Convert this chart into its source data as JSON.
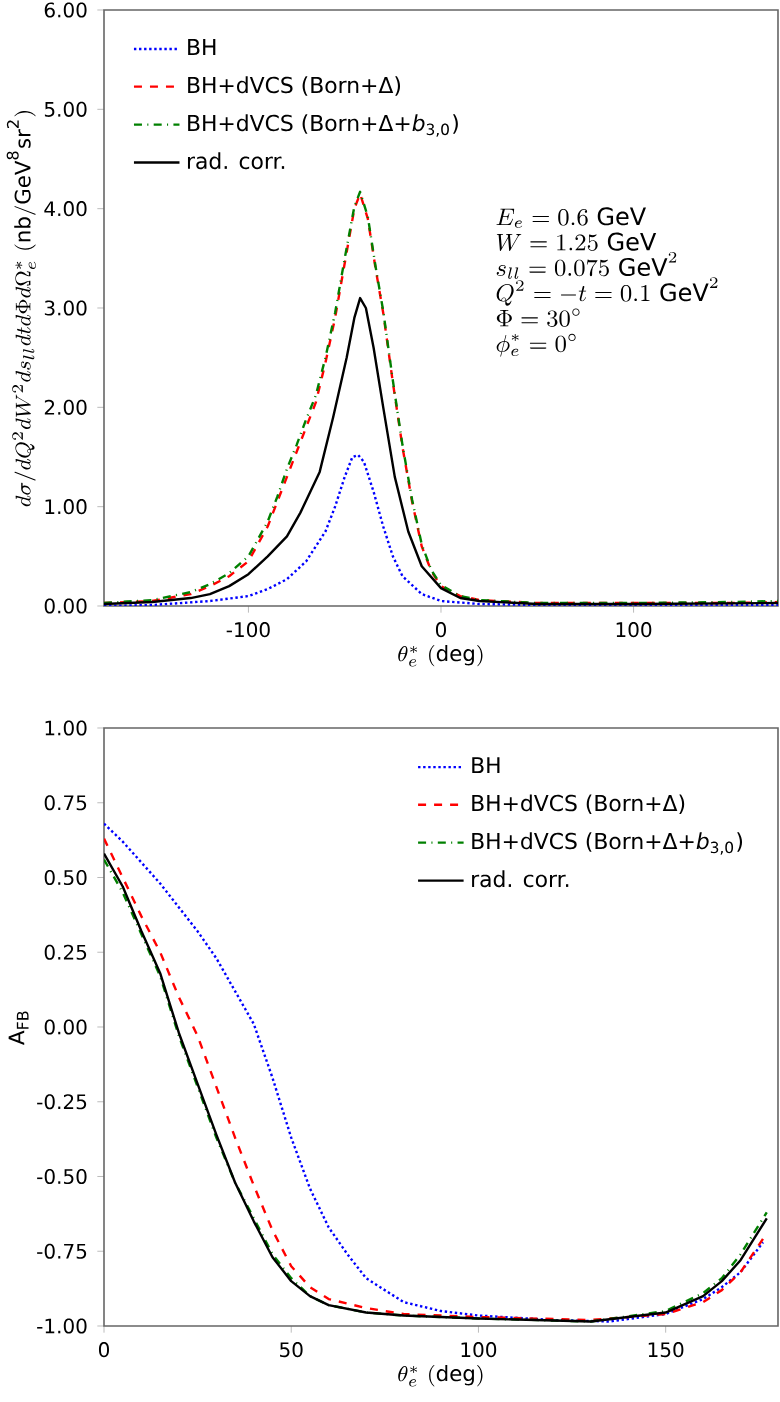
{
  "chart_data": [
    {
      "type": "line",
      "xlabel": "\\theta_e^*\\ (\\mathrm{deg})",
      "ylabel": "d\\sigma/dQ^2dW^2ds_{ll}dtd\\Phi d\\Omega_e^*\\ (\\mathrm{nb/GeV^8sr^2})",
      "xlim": [
        -175,
        175
      ],
      "ylim": [
        0,
        6
      ],
      "xticks": [
        -100,
        0,
        100
      ],
      "yticks": [
        {
          "value": 0,
          "label": "0.00"
        },
        {
          "value": 1,
          "label": "1.00"
        },
        {
          "value": 2,
          "label": "2.00"
        },
        {
          "value": 3,
          "label": "3.00"
        },
        {
          "value": 4,
          "label": "4.00"
        },
        {
          "value": 5,
          "label": "5.00"
        },
        {
          "value": 6,
          "label": "6.00"
        }
      ],
      "legend": "top left",
      "grid": false,
      "annotations": [
        "E_e = 0.6\\ \\mathrm{GeV}",
        "W = 1.25\\ \\mathrm{GeV}",
        "s_{ll} = 0.075\\ \\mathrm{GeV}^2",
        "Q^2 = -t = 0.1\\ \\mathrm{GeV}^2",
        "\\Phi = 30^\\circ",
        "\\phi_e^* = 0^\\circ"
      ],
      "series": [
        {
          "name": "BH",
          "color": "#0000ff",
          "line_style": "dotted",
          "x": [
            -175,
            -150,
            -120,
            -100,
            -90,
            -80,
            -70,
            -60,
            -55,
            -50,
            -46,
            -43,
            -40,
            -35,
            -30,
            -25,
            -20,
            -10,
            0,
            20,
            50,
            100,
            175
          ],
          "values": [
            0.0,
            0.01,
            0.05,
            0.1,
            0.17,
            0.27,
            0.45,
            0.75,
            1.0,
            1.3,
            1.5,
            1.52,
            1.45,
            1.15,
            0.8,
            0.5,
            0.3,
            0.12,
            0.05,
            0.02,
            0.01,
            0.01,
            0.01
          ]
        },
        {
          "name": "BH+dVCS (Born+Δ)",
          "color": "#ff0000",
          "line_style": "dashed",
          "x": [
            -175,
            -150,
            -130,
            -120,
            -110,
            -100,
            -90,
            -85,
            -80,
            -75,
            -70,
            -65,
            -60,
            -55,
            -50,
            -45,
            -42,
            -38,
            -34,
            -30,
            -25,
            -20,
            -15,
            -10,
            -5,
            0,
            10,
            20,
            50,
            100,
            150,
            175
          ],
          "values": [
            0.03,
            0.05,
            0.12,
            0.2,
            0.3,
            0.45,
            0.8,
            1.05,
            1.3,
            1.55,
            1.8,
            2.05,
            2.45,
            2.9,
            3.45,
            4.0,
            4.15,
            3.9,
            3.4,
            2.95,
            2.25,
            1.6,
            1.05,
            0.6,
            0.35,
            0.2,
            0.1,
            0.06,
            0.03,
            0.03,
            0.03,
            0.04
          ]
        },
        {
          "name": "BH+dVCS (Born+Δ+*b*$_{3,0}$)",
          "color": "#008000",
          "line_style": "dashdot",
          "x": [
            -175,
            -150,
            -130,
            -120,
            -110,
            -100,
            -90,
            -85,
            -80,
            -75,
            -70,
            -65,
            -60,
            -55,
            -50,
            -45,
            -42,
            -38,
            -34,
            -30,
            -25,
            -20,
            -15,
            -10,
            -5,
            0,
            10,
            20,
            50,
            100,
            150,
            175
          ],
          "values": [
            0.03,
            0.06,
            0.14,
            0.22,
            0.33,
            0.5,
            0.85,
            1.1,
            1.38,
            1.62,
            1.88,
            2.12,
            2.5,
            2.95,
            3.5,
            4.02,
            4.17,
            3.92,
            3.42,
            2.97,
            2.27,
            1.62,
            1.07,
            0.62,
            0.36,
            0.21,
            0.1,
            0.06,
            0.03,
            0.03,
            0.04,
            0.05
          ]
        },
        {
          "name": "rad. corr.",
          "color": "#000000",
          "line_style": "solid",
          "x": [
            -175,
            -150,
            -130,
            -120,
            -110,
            -100,
            -90,
            -80,
            -73,
            -63,
            -56,
            -49,
            -45,
            -42,
            -39,
            -35,
            -30,
            -24,
            -17,
            -10,
            0,
            10,
            20,
            50,
            100,
            175
          ],
          "values": [
            0.02,
            0.04,
            0.08,
            0.12,
            0.2,
            0.32,
            0.5,
            0.7,
            0.94,
            1.35,
            1.9,
            2.5,
            2.9,
            3.1,
            3.0,
            2.6,
            2.0,
            1.3,
            0.75,
            0.4,
            0.18,
            0.08,
            0.05,
            0.02,
            0.02,
            0.03
          ]
        }
      ]
    },
    {
      "type": "line",
      "xlabel": "\\theta_e^*\\ (\\mathrm{deg})",
      "ylabel": "A$_{FB}$",
      "xlim": [
        0,
        180
      ],
      "ylim": [
        -1,
        1
      ],
      "xticks": [
        0,
        50,
        100,
        150
      ],
      "yticks": [
        {
          "value": -1,
          "label": "-1.00"
        },
        {
          "value": -0.75,
          "label": "-0.75"
        },
        {
          "value": -0.5,
          "label": "-0.50"
        },
        {
          "value": -0.25,
          "label": "-0.25"
        },
        {
          "value": 0,
          "label": "0.00"
        },
        {
          "value": 0.25,
          "label": "0.25"
        },
        {
          "value": 0.5,
          "label": "0.50"
        },
        {
          "value": 0.75,
          "label": "0.75"
        },
        {
          "value": 1,
          "label": "1.00"
        }
      ],
      "legend": "top right",
      "grid": false,
      "series": [
        {
          "name": "BH",
          "color": "#0000ff",
          "line_style": "dotted",
          "x": [
            0,
            5,
            10,
            15,
            20,
            25,
            30,
            35,
            40,
            45,
            50,
            55,
            60,
            65,
            70,
            80,
            90,
            100,
            120,
            135,
            150,
            160,
            165,
            170,
            176
          ],
          "values": [
            0.68,
            0.62,
            0.55,
            0.48,
            0.4,
            0.32,
            0.23,
            0.12,
            0.01,
            -0.17,
            -0.37,
            -0.54,
            -0.67,
            -0.76,
            -0.84,
            -0.92,
            -0.95,
            -0.965,
            -0.98,
            -0.985,
            -0.96,
            -0.91,
            -0.87,
            -0.82,
            -0.72
          ]
        },
        {
          "name": "BH+dVCS (Born+Δ)",
          "color": "#ff0000",
          "line_style": "dashed",
          "x": [
            0,
            5,
            10,
            15,
            20,
            25,
            30,
            35,
            40,
            45,
            50,
            55,
            60,
            70,
            80,
            100,
            130,
            150,
            160,
            165,
            170,
            177
          ],
          "values": [
            0.63,
            0.5,
            0.37,
            0.25,
            0.1,
            -0.03,
            -0.2,
            -0.37,
            -0.53,
            -0.68,
            -0.8,
            -0.87,
            -0.91,
            -0.94,
            -0.96,
            -0.97,
            -0.98,
            -0.96,
            -0.92,
            -0.88,
            -0.82,
            -0.69
          ]
        },
        {
          "name": "BH+dVCS (Born+Δ+*b*$_{3,0}$)",
          "color": "#008000",
          "line_style": "dashdot",
          "x": [
            0,
            5,
            10,
            15,
            20,
            25,
            30,
            35,
            40,
            45,
            50,
            55,
            60,
            70,
            80,
            100,
            130,
            150,
            160,
            165,
            170,
            177
          ],
          "values": [
            0.56,
            0.45,
            0.31,
            0.17,
            -0.03,
            -0.2,
            -0.37,
            -0.52,
            -0.64,
            -0.76,
            -0.84,
            -0.9,
            -0.93,
            -0.955,
            -0.965,
            -0.975,
            -0.985,
            -0.95,
            -0.89,
            -0.84,
            -0.76,
            -0.62
          ]
        },
        {
          "name": "rad. corr.",
          "color": "#000000",
          "line_style": "solid",
          "x": [
            0,
            5,
            10,
            15,
            20,
            25,
            30,
            35,
            40,
            45,
            50,
            55,
            60,
            70,
            80,
            100,
            130,
            150,
            160,
            165,
            170,
            177
          ],
          "values": [
            0.58,
            0.47,
            0.32,
            0.18,
            -0.02,
            -0.19,
            -0.36,
            -0.52,
            -0.65,
            -0.77,
            -0.85,
            -0.9,
            -0.93,
            -0.955,
            -0.965,
            -0.975,
            -0.985,
            -0.955,
            -0.9,
            -0.85,
            -0.78,
            -0.64
          ]
        }
      ]
    }
  ]
}
